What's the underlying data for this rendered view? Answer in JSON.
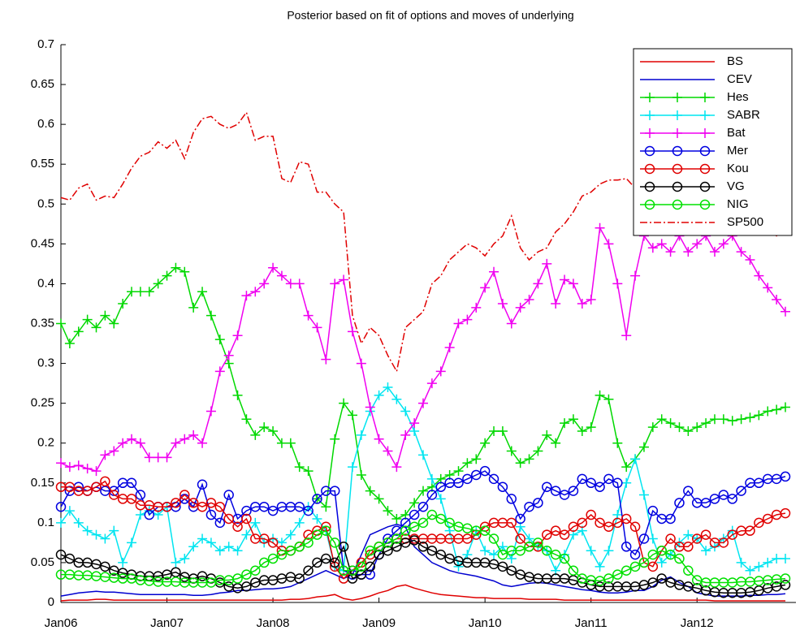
{
  "chart_data": {
    "type": "line",
    "title": "Posterior based on fit of options and moves of underlying",
    "categories": [
      "Jan06",
      null,
      null,
      null,
      null,
      null,
      null,
      null,
      null,
      null,
      null,
      null,
      "Jan07",
      null,
      null,
      null,
      null,
      null,
      null,
      null,
      null,
      null,
      null,
      null,
      "Jan08",
      null,
      null,
      null,
      null,
      null,
      null,
      null,
      null,
      null,
      null,
      null,
      "Jan09",
      null,
      null,
      null,
      null,
      null,
      null,
      null,
      null,
      null,
      null,
      null,
      "Jan10",
      null,
      null,
      null,
      null,
      null,
      null,
      null,
      null,
      null,
      null,
      null,
      "Jan11",
      null,
      null,
      null,
      null,
      null,
      null,
      null,
      null,
      null,
      null,
      null,
      "Jan12",
      null,
      null,
      null,
      null,
      null,
      null,
      null,
      null,
      null,
      null
    ],
    "ylim": [
      0,
      0.7
    ],
    "yticks": [
      0,
      0.05,
      0.1,
      0.15,
      0.2,
      0.25,
      0.3,
      0.35,
      0.4,
      0.45,
      0.5,
      0.55,
      0.6,
      0.65,
      0.7
    ],
    "legend": "upper right",
    "series": [
      {
        "name": "BS",
        "color": "#e00000",
        "marker": "none",
        "dash": "solid",
        "values": [
          0.002,
          0.003,
          0.003,
          0.003,
          0.004,
          0.004,
          0.003,
          0.003,
          0.003,
          0.003,
          0.003,
          0.003,
          0.003,
          0.003,
          0.003,
          0.003,
          0.003,
          0.003,
          0.003,
          0.003,
          0.003,
          0.003,
          0.003,
          0.003,
          0.003,
          0.003,
          0.004,
          0.004,
          0.005,
          0.007,
          0.008,
          0.01,
          0.005,
          0.003,
          0.005,
          0.008,
          0.012,
          0.015,
          0.02,
          0.022,
          0.018,
          0.015,
          0.012,
          0.01,
          0.009,
          0.008,
          0.007,
          0.006,
          0.006,
          0.005,
          0.005,
          0.005,
          0.005,
          0.004,
          0.004,
          0.004,
          0.004,
          0.003,
          0.003,
          0.003,
          0.003,
          0.003,
          0.003,
          0.003,
          0.003,
          0.003,
          0.003,
          0.003,
          0.003,
          0.003,
          0.003,
          0.003,
          0.003,
          0.003,
          0.002,
          0.002,
          0.002,
          0.002,
          0.002,
          0.002,
          0.002,
          0.002,
          0.002
        ]
      },
      {
        "name": "CEV",
        "color": "#0000d0",
        "marker": "none",
        "dash": "solid",
        "values": [
          0.008,
          0.01,
          0.012,
          0.013,
          0.014,
          0.013,
          0.013,
          0.012,
          0.011,
          0.01,
          0.01,
          0.01,
          0.01,
          0.01,
          0.01,
          0.009,
          0.009,
          0.01,
          0.012,
          0.013,
          0.015,
          0.015,
          0.016,
          0.017,
          0.017,
          0.018,
          0.02,
          0.025,
          0.03,
          0.035,
          0.04,
          0.035,
          0.03,
          0.035,
          0.06,
          0.085,
          0.09,
          0.095,
          0.098,
          0.095,
          0.07,
          0.06,
          0.05,
          0.045,
          0.04,
          0.037,
          0.035,
          0.033,
          0.03,
          0.027,
          0.022,
          0.02,
          0.022,
          0.024,
          0.025,
          0.024,
          0.022,
          0.02,
          0.018,
          0.016,
          0.015,
          0.013,
          0.012,
          0.012,
          0.013,
          0.015,
          0.015,
          0.02,
          0.028,
          0.032,
          0.025,
          0.02,
          0.012,
          0.01,
          0.008,
          0.008,
          0.008,
          0.008,
          0.009,
          0.009,
          0.01,
          0.01,
          0.011
        ]
      },
      {
        "name": "Hes",
        "color": "#00d800",
        "marker": "plus",
        "dash": "solid",
        "values": [
          0.35,
          0.325,
          0.34,
          0.355,
          0.345,
          0.36,
          0.35,
          0.375,
          0.39,
          0.39,
          0.39,
          0.4,
          0.41,
          0.42,
          0.415,
          0.37,
          0.39,
          0.36,
          0.33,
          0.3,
          0.26,
          0.23,
          0.21,
          0.22,
          0.215,
          0.2,
          0.2,
          0.17,
          0.165,
          0.13,
          0.12,
          0.205,
          0.25,
          0.235,
          0.16,
          0.14,
          0.13,
          0.115,
          0.105,
          0.11,
          0.125,
          0.14,
          0.145,
          0.155,
          0.16,
          0.165,
          0.175,
          0.18,
          0.2,
          0.215,
          0.215,
          0.19,
          0.175,
          0.18,
          0.19,
          0.21,
          0.2,
          0.225,
          0.23,
          0.215,
          0.22,
          0.26,
          0.255,
          0.2,
          0.17,
          0.18,
          0.195,
          0.22,
          0.23,
          0.225,
          0.22,
          0.215,
          0.22,
          0.225,
          0.23,
          0.23,
          0.228,
          0.23,
          0.232,
          0.235,
          0.24,
          0.242,
          0.245
        ]
      },
      {
        "name": "SABR",
        "color": "#00e5f0",
        "marker": "plus",
        "dash": "solid",
        "values": [
          0.1,
          0.115,
          0.1,
          0.09,
          0.085,
          0.08,
          0.09,
          0.05,
          0.075,
          0.11,
          0.115,
          0.11,
          0.12,
          0.05,
          0.055,
          0.07,
          0.08,
          0.075,
          0.065,
          0.07,
          0.065,
          0.085,
          0.1,
          0.075,
          0.08,
          0.075,
          0.085,
          0.1,
          0.12,
          0.105,
          0.09,
          0.045,
          0.04,
          0.17,
          0.21,
          0.24,
          0.26,
          0.27,
          0.255,
          0.24,
          0.215,
          0.185,
          0.155,
          0.13,
          0.09,
          0.045,
          0.06,
          0.09,
          0.065,
          0.06,
          0.07,
          0.055,
          0.095,
          0.08,
          0.07,
          0.065,
          0.04,
          0.06,
          0.085,
          0.09,
          0.065,
          0.045,
          0.065,
          0.11,
          0.15,
          0.18,
          0.135,
          0.08,
          0.05,
          0.06,
          0.075,
          0.085,
          0.08,
          0.065,
          0.07,
          0.08,
          0.09,
          0.05,
          0.04,
          0.045,
          0.05,
          0.055,
          0.055
        ]
      },
      {
        "name": "Bat",
        "color": "#f000f0",
        "marker": "plus",
        "dash": "solid",
        "values": [
          0.175,
          0.17,
          0.172,
          0.168,
          0.165,
          0.185,
          0.19,
          0.2,
          0.205,
          0.2,
          0.182,
          0.182,
          0.182,
          0.2,
          0.205,
          0.21,
          0.2,
          0.24,
          0.29,
          0.31,
          0.335,
          0.385,
          0.39,
          0.4,
          0.42,
          0.41,
          0.4,
          0.4,
          0.36,
          0.345,
          0.305,
          0.4,
          0.405,
          0.34,
          0.3,
          0.245,
          0.205,
          0.19,
          0.17,
          0.21,
          0.225,
          0.25,
          0.275,
          0.29,
          0.32,
          0.35,
          0.355,
          0.37,
          0.395,
          0.415,
          0.375,
          0.35,
          0.37,
          0.38,
          0.4,
          0.425,
          0.375,
          0.405,
          0.4,
          0.375,
          0.38,
          0.47,
          0.45,
          0.4,
          0.335,
          0.41,
          0.46,
          0.445,
          0.45,
          0.44,
          0.46,
          0.44,
          0.45,
          0.46,
          0.44,
          0.45,
          0.46,
          0.44,
          0.43,
          0.41,
          0.395,
          0.38,
          0.365
        ]
      },
      {
        "name": "Mer",
        "color": "#0000e0",
        "marker": "circle",
        "dash": "solid",
        "values": [
          0.12,
          0.14,
          0.145,
          0.14,
          0.145,
          0.14,
          0.14,
          0.15,
          0.15,
          0.135,
          0.11,
          0.12,
          0.12,
          0.12,
          0.13,
          0.12,
          0.148,
          0.11,
          0.1,
          0.135,
          0.105,
          0.115,
          0.12,
          0.12,
          0.115,
          0.12,
          0.12,
          0.12,
          0.115,
          0.13,
          0.14,
          0.14,
          0.04,
          0.035,
          0.035,
          0.035,
          0.06,
          0.08,
          0.09,
          0.1,
          0.11,
          0.12,
          0.135,
          0.145,
          0.15,
          0.15,
          0.155,
          0.16,
          0.165,
          0.155,
          0.145,
          0.13,
          0.105,
          0.12,
          0.125,
          0.145,
          0.14,
          0.135,
          0.14,
          0.155,
          0.15,
          0.145,
          0.155,
          0.15,
          0.07,
          0.06,
          0.08,
          0.115,
          0.105,
          0.105,
          0.125,
          0.14,
          0.125,
          0.125,
          0.13,
          0.135,
          0.13,
          0.14,
          0.15,
          0.15,
          0.155,
          0.155,
          0.158
        ]
      },
      {
        "name": "Kou",
        "color": "#e00000",
        "marker": "circle",
        "dash": "solid",
        "values": [
          0.145,
          0.145,
          0.14,
          0.14,
          0.145,
          0.152,
          0.135,
          0.13,
          0.13,
          0.122,
          0.122,
          0.12,
          0.12,
          0.125,
          0.135,
          0.125,
          0.12,
          0.125,
          0.12,
          0.105,
          0.095,
          0.105,
          0.08,
          0.08,
          0.075,
          0.065,
          0.065,
          0.07,
          0.085,
          0.09,
          0.095,
          0.045,
          0.03,
          0.04,
          0.05,
          0.06,
          0.07,
          0.075,
          0.08,
          0.08,
          0.08,
          0.08,
          0.08,
          0.08,
          0.08,
          0.08,
          0.08,
          0.085,
          0.095,
          0.1,
          0.1,
          0.1,
          0.08,
          0.07,
          0.07,
          0.085,
          0.09,
          0.085,
          0.095,
          0.1,
          0.11,
          0.1,
          0.095,
          0.1,
          0.105,
          0.095,
          0.05,
          0.045,
          0.065,
          0.08,
          0.07,
          0.07,
          0.08,
          0.085,
          0.075,
          0.075,
          0.085,
          0.09,
          0.09,
          0.1,
          0.105,
          0.11,
          0.112
        ]
      },
      {
        "name": "VG",
        "color": "#000000",
        "marker": "circle",
        "dash": "solid",
        "values": [
          0.06,
          0.055,
          0.05,
          0.05,
          0.048,
          0.045,
          0.04,
          0.037,
          0.035,
          0.033,
          0.033,
          0.033,
          0.035,
          0.038,
          0.032,
          0.03,
          0.033,
          0.03,
          0.025,
          0.02,
          0.018,
          0.02,
          0.025,
          0.028,
          0.028,
          0.03,
          0.032,
          0.03,
          0.04,
          0.05,
          0.055,
          0.05,
          0.07,
          0.03,
          0.035,
          0.045,
          0.06,
          0.065,
          0.07,
          0.075,
          0.078,
          0.07,
          0.065,
          0.06,
          0.055,
          0.052,
          0.05,
          0.05,
          0.05,
          0.048,
          0.045,
          0.04,
          0.035,
          0.032,
          0.03,
          0.03,
          0.03,
          0.03,
          0.028,
          0.025,
          0.022,
          0.02,
          0.02,
          0.02,
          0.02,
          0.02,
          0.022,
          0.025,
          0.03,
          0.025,
          0.022,
          0.02,
          0.018,
          0.015,
          0.013,
          0.012,
          0.012,
          0.012,
          0.013,
          0.015,
          0.018,
          0.02,
          0.022
        ]
      },
      {
        "name": "NIG",
        "color": "#00e000",
        "marker": "circle",
        "dash": "solid",
        "values": [
          0.035,
          0.035,
          0.034,
          0.034,
          0.033,
          0.032,
          0.031,
          0.03,
          0.03,
          0.028,
          0.027,
          0.026,
          0.026,
          0.026,
          0.025,
          0.025,
          0.025,
          0.025,
          0.028,
          0.028,
          0.03,
          0.035,
          0.04,
          0.05,
          0.055,
          0.06,
          0.065,
          0.07,
          0.075,
          0.085,
          0.09,
          0.075,
          0.04,
          0.04,
          0.045,
          0.065,
          0.07,
          0.075,
          0.08,
          0.09,
          0.095,
          0.1,
          0.11,
          0.105,
          0.1,
          0.095,
          0.093,
          0.09,
          0.09,
          0.08,
          0.06,
          0.065,
          0.065,
          0.07,
          0.075,
          0.065,
          0.06,
          0.055,
          0.04,
          0.03,
          0.028,
          0.027,
          0.03,
          0.035,
          0.04,
          0.045,
          0.05,
          0.06,
          0.065,
          0.06,
          0.055,
          0.04,
          0.028,
          0.025,
          0.025,
          0.025,
          0.025,
          0.026,
          0.026,
          0.027,
          0.028,
          0.029,
          0.03
        ]
      },
      {
        "name": "SP500",
        "color": "#e00000",
        "marker": "none",
        "dash": "dashdot",
        "values": [
          0.508,
          0.505,
          0.52,
          0.525,
          0.505,
          0.51,
          0.508,
          0.525,
          0.545,
          0.56,
          0.565,
          0.578,
          0.57,
          0.58,
          0.557,
          0.59,
          0.607,
          0.61,
          0.6,
          0.595,
          0.6,
          0.615,
          0.58,
          0.585,
          0.585,
          0.532,
          0.527,
          0.553,
          0.55,
          0.515,
          0.515,
          0.5,
          0.49,
          0.36,
          0.325,
          0.345,
          0.335,
          0.31,
          0.29,
          0.345,
          0.355,
          0.365,
          0.4,
          0.41,
          0.43,
          0.44,
          0.45,
          0.445,
          0.435,
          0.45,
          0.46,
          0.485,
          0.445,
          0.43,
          0.44,
          0.445,
          0.465,
          0.475,
          0.49,
          0.51,
          0.515,
          0.525,
          0.53,
          0.53,
          0.532,
          0.52,
          0.5,
          0.49,
          0.48,
          0.47,
          0.46,
          0.47,
          0.5,
          0.5,
          0.49,
          0.47,
          0.46,
          0.47,
          0.48,
          0.49,
          0.47,
          0.46,
          0.47
        ]
      }
    ]
  }
}
